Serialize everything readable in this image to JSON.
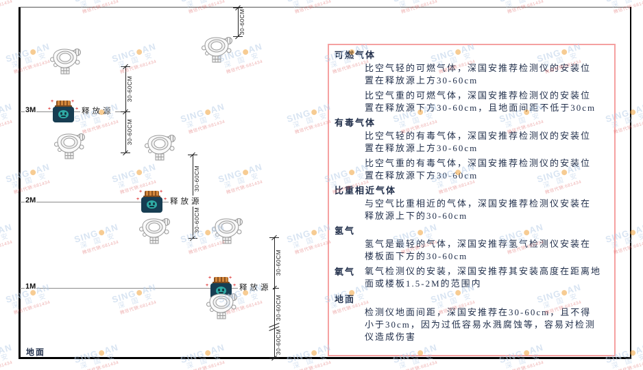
{
  "diagram": {
    "ground_label": "地面",
    "release_source_label": "释放源",
    "dimension_label": "30-60CM",
    "height_labels": [
      "3M",
      "2M",
      "1M"
    ]
  },
  "panel": {
    "sections": [
      {
        "heading": "可燃气体",
        "inline": false,
        "paragraphs": [
          "比空气轻的可燃气体，深国安推荐检测仪的安装位置在释放源上方30-60cm",
          "比空气重的可燃气体，深国安推荐检测仪的安装位置在释放源下方30-60cm，且地面间距不低于30cm"
        ]
      },
      {
        "heading": "有毒气体",
        "inline": false,
        "paragraphs": [
          "比空气轻的有毒气体，深国安推荐检测仪的安装位置在释放源上方30-60cm",
          "比空气重的有毒气体，深国安推荐检测仪的安装位置在释放源下方30-60cm"
        ]
      },
      {
        "heading": "比重相近气体",
        "inline": false,
        "paragraphs": [
          "与空气比重相近的气体，深国安推荐检测仪安装在释放源上下的30-60cm"
        ]
      },
      {
        "heading": "氢气",
        "inline": false,
        "paragraphs": [
          "氢气是最轻的气体，深国安推荐氢气检测仪安装在楼板面下方的30-60cm"
        ]
      },
      {
        "heading": "氧气",
        "inline": true,
        "paragraphs": [
          "氧气检测仪的安装，深国安推荐其安装高度在距离地面或楼板1.5-2M的范围内"
        ]
      },
      {
        "heading": "地面",
        "inline": false,
        "paragraphs": [
          "检测仪地面间距，深国安推荐在30-60cm，且不得小于30cm，因为过低容易水溅腐蚀等，容易对检测仪造成伤害"
        ]
      }
    ]
  },
  "watermark": {
    "brand_prefix": "SING",
    "brand_suffix": "AN",
    "cn_text": "深 国 安",
    "sub_text": "微信代销:681434"
  },
  "colors": {
    "panel_border": "#f5a0a0",
    "text": "#1f2d49",
    "watermark_blue": "#b9cfe8",
    "watermark_orange": "#f2a33c",
    "watermark_red": "#e06b6b",
    "source_body": "#173d52",
    "source_cap": "#d4883c",
    "source_face": "#2fa9a4"
  }
}
